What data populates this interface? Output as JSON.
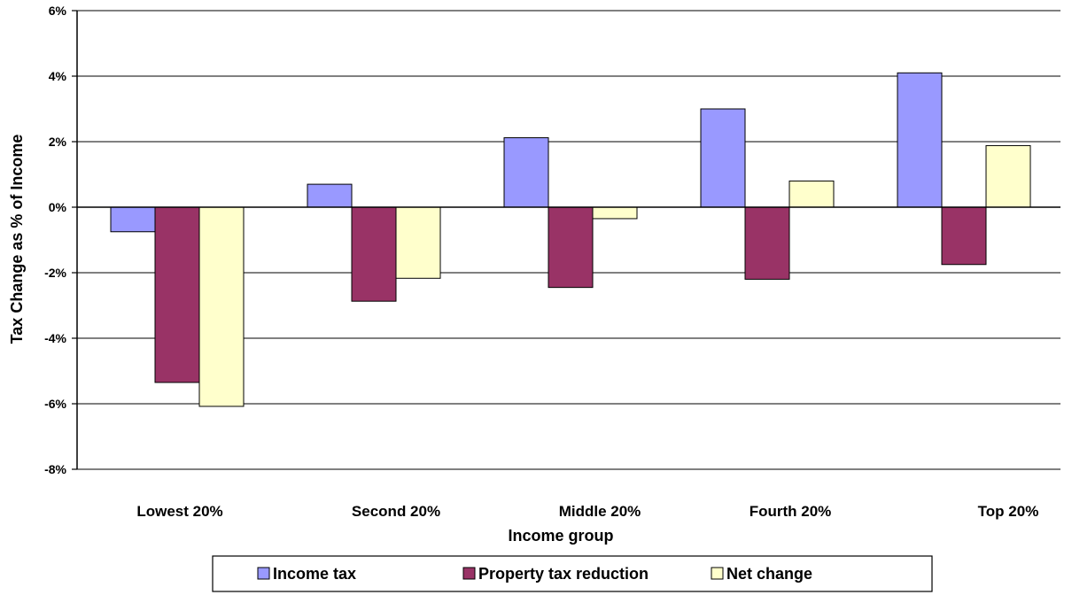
{
  "chart_data": {
    "type": "bar",
    "title": "",
    "xlabel": "Income group",
    "ylabel": "Tax Change as % of Income",
    "categories": [
      "Lowest 20%",
      "Second 20%",
      "Middle 20%",
      "Fourth 20%",
      "Top 20%"
    ],
    "series": [
      {
        "name": "Income tax",
        "values": [
          -0.75,
          0.7,
          2.12,
          3.0,
          4.1
        ],
        "color": "#9999ff"
      },
      {
        "name": "Property tax reduction",
        "values": [
          -5.35,
          -2.87,
          -2.45,
          -2.2,
          -1.75
        ],
        "color": "#993366"
      },
      {
        "name": "Net change",
        "values": [
          -6.08,
          -2.17,
          -0.35,
          0.8,
          1.88
        ],
        "color": "#ffffcc"
      }
    ],
    "ylim": [
      -8,
      6
    ],
    "yticks": [
      6,
      4,
      2,
      0,
      -2,
      -4,
      -6,
      -8
    ],
    "ytick_format": "%",
    "grid": "horizontal",
    "legend_position": "bottom"
  }
}
